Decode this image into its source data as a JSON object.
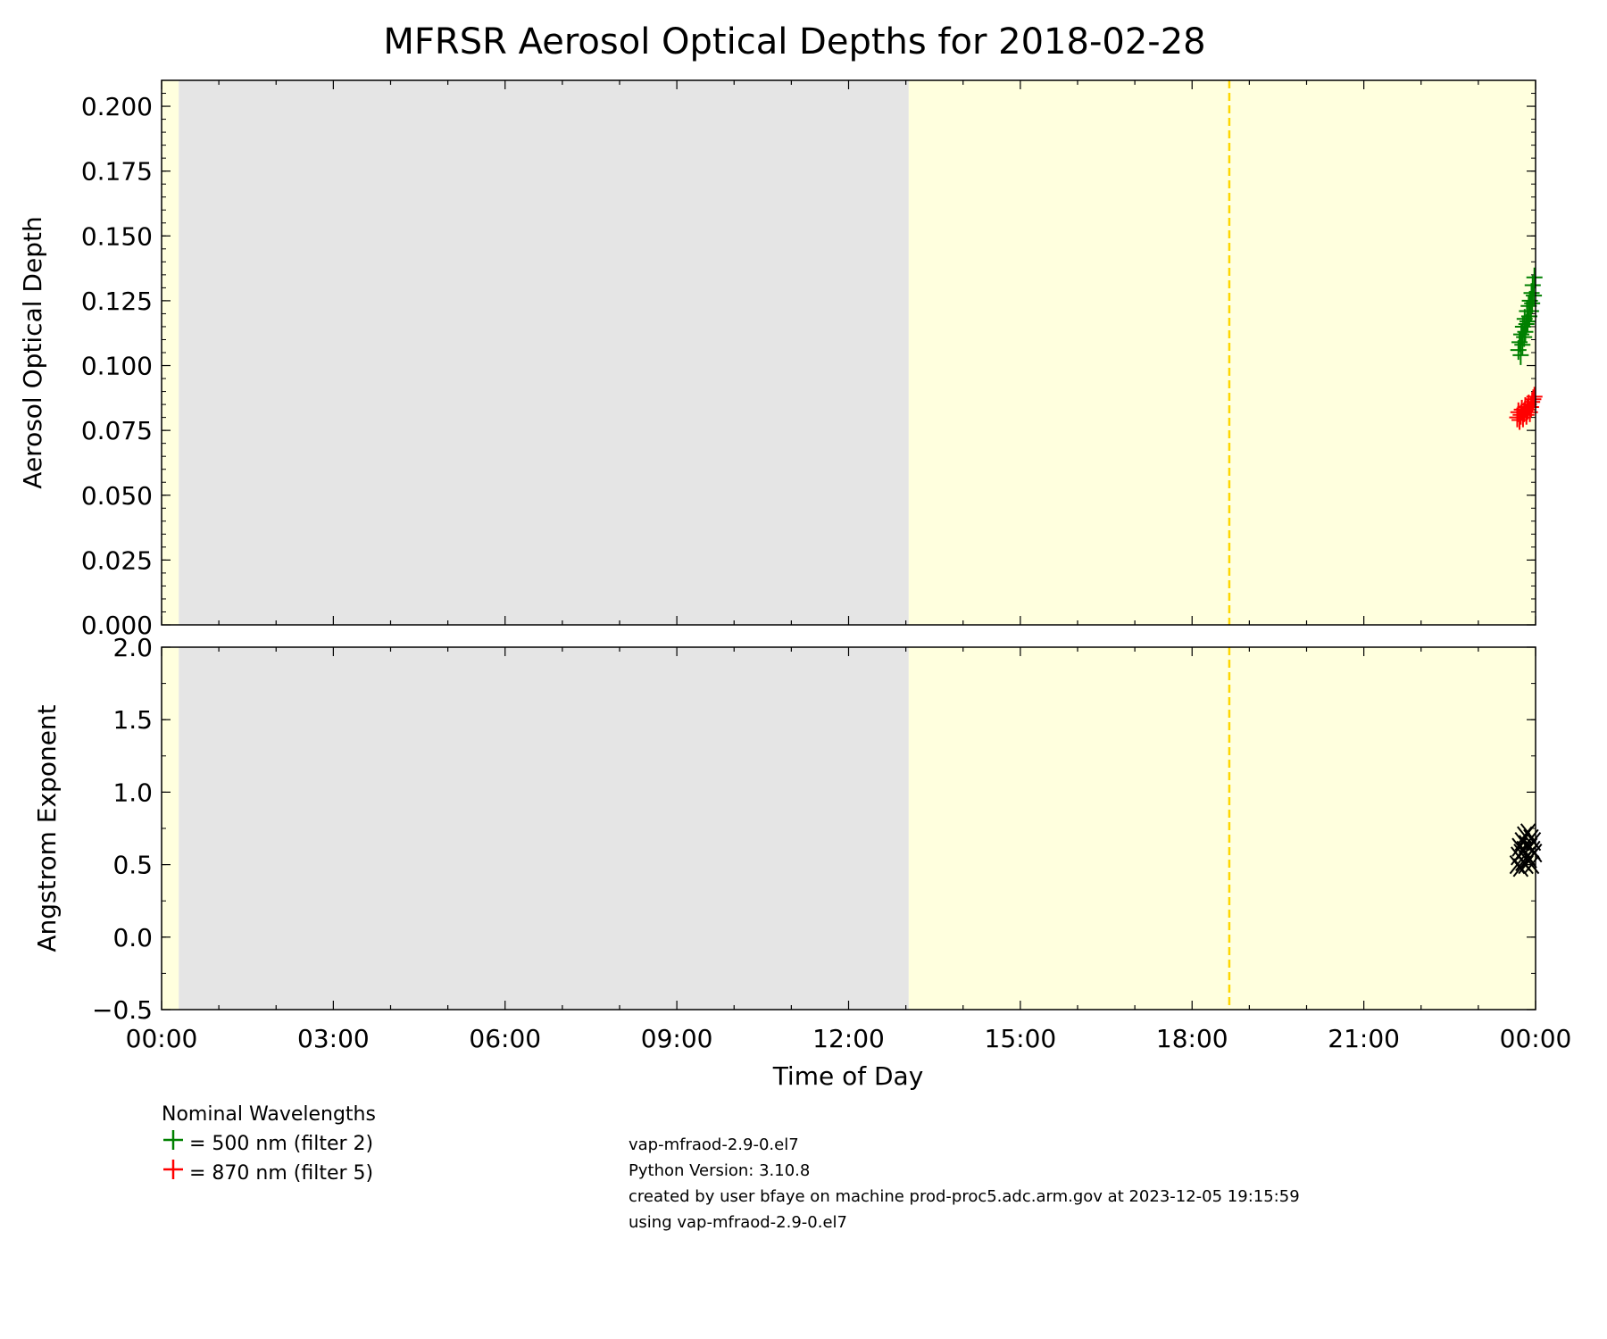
{
  "chart_data": [
    {
      "type": "scatter",
      "title": "MFRSR Aerosol Optical Depths for 2018-02-28",
      "xlabel": "",
      "ylabel": "Aerosol Optical Depth",
      "xlim": [
        "00:00",
        "24:00"
      ],
      "ylim": [
        0.0,
        0.21
      ],
      "yticks": [
        "0.000",
        "0.025",
        "0.050",
        "0.075",
        "0.100",
        "0.125",
        "0.150",
        "0.175",
        "0.200"
      ],
      "background_regions": [
        {
          "start_hour": 0.0,
          "end_hour": 0.3,
          "color": "#ffffde"
        },
        {
          "start_hour": 0.3,
          "end_hour": 13.05,
          "color": "#e5e5e5"
        },
        {
          "start_hour": 13.05,
          "end_hour": 24.0,
          "color": "#ffffde"
        }
      ],
      "vline_hour": 18.65,
      "vline_color": "#ffd700",
      "series": [
        {
          "name": "500 nm (filter 2)",
          "marker": "+",
          "color": "#008000",
          "x": [
            23.7,
            23.72,
            23.74,
            23.75,
            23.77,
            23.78,
            23.8,
            23.81,
            23.82,
            23.84,
            23.85,
            23.86,
            23.88,
            23.89,
            23.9,
            23.92,
            23.93,
            23.94,
            23.95,
            23.97,
            23.98
          ],
          "y": [
            0.106,
            0.109,
            0.104,
            0.112,
            0.108,
            0.115,
            0.111,
            0.118,
            0.113,
            0.116,
            0.121,
            0.117,
            0.123,
            0.119,
            0.125,
            0.121,
            0.128,
            0.124,
            0.131,
            0.127,
            0.134
          ]
        },
        {
          "name": "870 nm (filter 5)",
          "marker": "+",
          "color": "#ff0000",
          "x": [
            23.68,
            23.7,
            23.72,
            23.74,
            23.76,
            23.78,
            23.8,
            23.82,
            23.84,
            23.86,
            23.88,
            23.9,
            23.92,
            23.94,
            23.96,
            23.98
          ],
          "y": [
            0.08,
            0.082,
            0.079,
            0.081,
            0.083,
            0.08,
            0.082,
            0.084,
            0.081,
            0.083,
            0.085,
            0.082,
            0.084,
            0.086,
            0.087,
            0.088
          ]
        }
      ]
    },
    {
      "type": "scatter",
      "xlabel": "Time of Day",
      "ylabel": "Angstrom Exponent",
      "xlim": [
        "00:00",
        "24:00"
      ],
      "ylim": [
        -0.5,
        2.0
      ],
      "yticks": [
        "−0.5",
        "0.0",
        "0.5",
        "1.0",
        "1.5",
        "2.0"
      ],
      "xticks": [
        "00:00",
        "03:00",
        "06:00",
        "09:00",
        "12:00",
        "15:00",
        "18:00",
        "21:00",
        "00:00"
      ],
      "background_regions": [
        {
          "start_hour": 0.0,
          "end_hour": 0.3,
          "color": "#ffffde"
        },
        {
          "start_hour": 0.3,
          "end_hour": 13.05,
          "color": "#e5e5e5"
        },
        {
          "start_hour": 13.05,
          "end_hour": 24.0,
          "color": "#ffffde"
        }
      ],
      "vline_hour": 18.65,
      "vline_color": "#ffd700",
      "series": [
        {
          "marker": "x",
          "color": "#000000",
          "x": [
            23.68,
            23.7,
            23.72,
            23.74,
            23.75,
            23.77,
            23.78,
            23.8,
            23.81,
            23.83,
            23.84,
            23.86,
            23.87,
            23.89,
            23.9,
            23.92,
            23.93,
            23.95,
            23.96,
            23.98
          ],
          "y": [
            0.5,
            0.56,
            0.62,
            0.48,
            0.58,
            0.66,
            0.52,
            0.6,
            0.7,
            0.5,
            0.64,
            0.56,
            0.72,
            0.54,
            0.62,
            0.68,
            0.5,
            0.6,
            0.66,
            0.58
          ]
        }
      ]
    }
  ],
  "legend": {
    "title": "Nominal Wavelengths",
    "items": [
      {
        "symbol": "+",
        "color": "#008000",
        "label": "= 500 nm (filter 2)"
      },
      {
        "symbol": "+",
        "color": "#ff0000",
        "label": "= 870 nm (filter 5)"
      }
    ]
  },
  "info": {
    "line1": "vap-mfraod-2.9-0.el7",
    "line2": "Python Version: 3.10.8",
    "line3": "created by user bfaye on machine prod-proc5.adc.arm.gov at 2023-12-05 19:15:59",
    "line4": "using vap-mfraod-2.9-0.el7"
  }
}
